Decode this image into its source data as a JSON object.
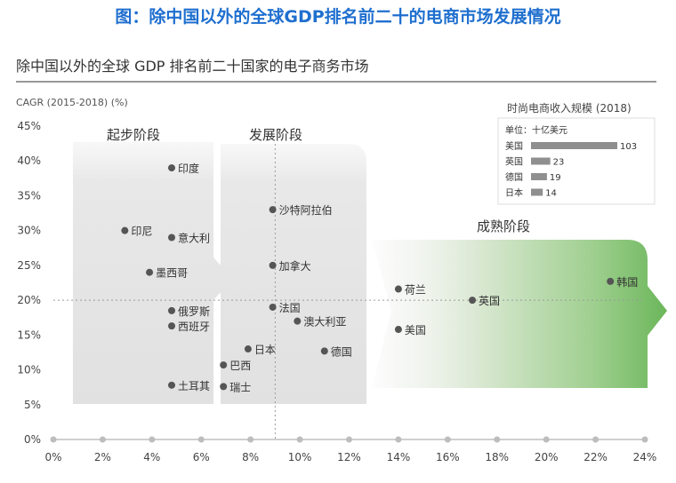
{
  "banner_title": "图：除中国以外的全球GDP排名前二十的电商市场发展情况",
  "chart_data": {
    "type": "scatter",
    "title": "除中国以外的全球 GDP 排名前二十国家的电子商务市场",
    "ylabel": "CAGR (2015-2018) (%)",
    "xlim": [
      0,
      24
    ],
    "ylim": [
      0,
      45
    ],
    "x_ticks": [
      "0%",
      "2%",
      "4%",
      "6%",
      "8%",
      "10%",
      "12%",
      "14%",
      "16%",
      "18%",
      "20%",
      "22%",
      "24%"
    ],
    "y_ticks": [
      "0%",
      "5%",
      "10%",
      "15%",
      "20%",
      "25%",
      "30%",
      "35%",
      "40%",
      "45%"
    ],
    "reference_lines": {
      "x": 9,
      "y": 20
    },
    "stages": [
      "起步阶段",
      "发展阶段",
      "成熟阶段"
    ],
    "points": [
      {
        "label": "印度",
        "x": 4.8,
        "y": 39
      },
      {
        "label": "印尼",
        "x": 2.9,
        "y": 30
      },
      {
        "label": "意大利",
        "x": 4.8,
        "y": 29
      },
      {
        "label": "墨西哥",
        "x": 3.9,
        "y": 24
      },
      {
        "label": "俄罗斯",
        "x": 4.8,
        "y": 18.5
      },
      {
        "label": "西班牙",
        "x": 4.8,
        "y": 16.3
      },
      {
        "label": "土耳其",
        "x": 4.8,
        "y": 7.8
      },
      {
        "label": "沙特阿拉伯",
        "x": 8.9,
        "y": 33
      },
      {
        "label": "加拿大",
        "x": 8.9,
        "y": 25
      },
      {
        "label": "法国",
        "x": 8.9,
        "y": 19
      },
      {
        "label": "澳大利亚",
        "x": 9.9,
        "y": 17
      },
      {
        "label": "日本",
        "x": 7.9,
        "y": 13
      },
      {
        "label": "德国",
        "x": 11.0,
        "y": 12.7
      },
      {
        "label": "巴西",
        "x": 6.9,
        "y": 10.7
      },
      {
        "label": "瑞士",
        "x": 6.9,
        "y": 7.6
      },
      {
        "label": "荷兰",
        "x": 14.0,
        "y": 21.6
      },
      {
        "label": "美国",
        "x": 14.0,
        "y": 15.8
      },
      {
        "label": "英国",
        "x": 17.0,
        "y": 20
      },
      {
        "label": "韩国",
        "x": 22.6,
        "y": 22.7
      }
    ],
    "inset": {
      "title": "时尚电商收入规模 (2018)",
      "unit": "单位：十亿美元",
      "categories": [
        "美国",
        "英国",
        "德国",
        "日本"
      ],
      "values": [
        103,
        23,
        19,
        14
      ]
    }
  },
  "colors": {
    "banner": "#1f6fcf",
    "point": "#555555",
    "axis": "#bbbbbb",
    "stage_gray": "#e3e3e3",
    "stage_green": "#6bb65a",
    "inset_bar": "#8f8f8f"
  }
}
